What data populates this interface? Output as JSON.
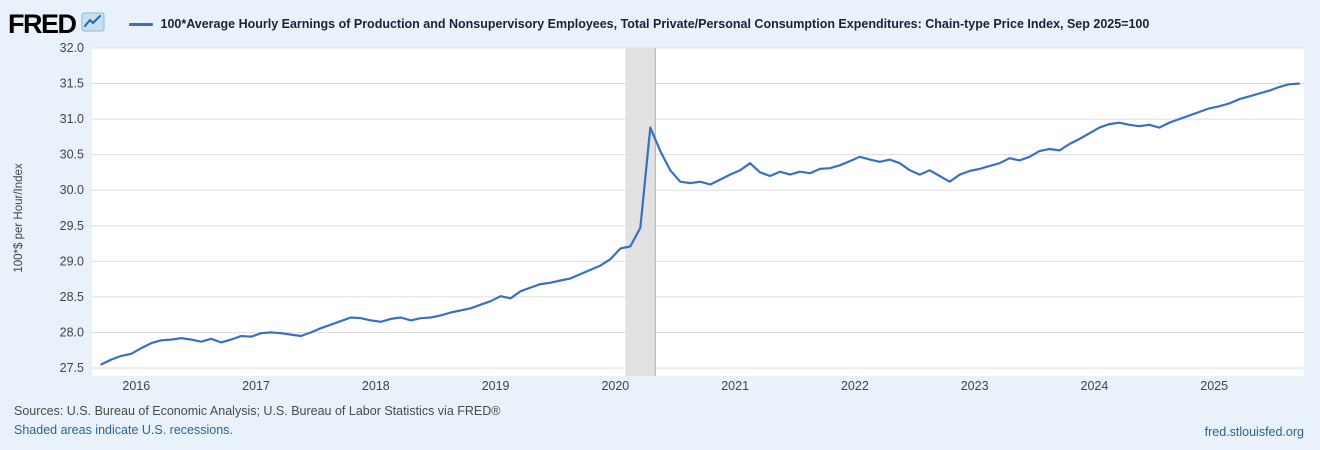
{
  "header": {
    "logo_text": "FRED"
  },
  "footer": {
    "sources": "Sources: U.S. Bureau of Economic Analysis; U.S. Bureau of Labor Statistics via FRED®",
    "recession_note": "Shaded areas indicate U.S. recessions.",
    "site": "fred.stlouisfed.org"
  },
  "chart_data": {
    "type": "line",
    "title": "100*Average Hourly Earnings of Production and Nonsupervisory Employees, Total Private/Personal Consumption Expenditures: Chain-type Price Index, Sep 2025=100",
    "xlabel": "",
    "ylabel": "100*$ per Hour/Index",
    "ylim": [
      27.5,
      32.0
    ],
    "y_tick_step": 0.5,
    "xlim": [
      2015.63,
      2025.75
    ],
    "x_ticks": [
      2016,
      2017,
      2018,
      2019,
      2020,
      2021,
      2022,
      2023,
      2024,
      2025
    ],
    "grid": "horizontal",
    "frequency": "monthly",
    "start": "2015-09",
    "values": [
      27.55,
      27.62,
      27.67,
      27.7,
      27.78,
      27.85,
      27.89,
      27.9,
      27.92,
      27.9,
      27.87,
      27.91,
      27.86,
      27.9,
      27.95,
      27.94,
      27.99,
      28.0,
      27.99,
      27.97,
      27.95,
      28.0,
      28.06,
      28.11,
      28.16,
      28.21,
      28.2,
      28.17,
      28.15,
      28.19,
      28.21,
      28.17,
      28.2,
      28.21,
      28.24,
      28.28,
      28.31,
      28.34,
      28.39,
      28.44,
      28.51,
      28.48,
      28.58,
      28.63,
      28.68,
      28.7,
      28.73,
      28.76,
      28.82,
      28.88,
      28.94,
      29.03,
      29.18,
      29.21,
      29.47,
      30.88,
      30.55,
      30.28,
      30.12,
      30.1,
      30.12,
      30.08,
      30.15,
      30.22,
      30.28,
      30.38,
      30.25,
      30.2,
      30.26,
      30.22,
      30.26,
      30.24,
      30.3,
      30.31,
      30.35,
      30.41,
      30.47,
      30.43,
      30.4,
      30.43,
      30.38,
      30.28,
      30.22,
      30.28,
      30.2,
      30.12,
      30.22,
      30.27,
      30.3,
      30.34,
      30.38,
      30.45,
      30.42,
      30.47,
      30.55,
      30.58,
      30.56,
      30.65,
      30.72,
      30.8,
      30.88,
      30.93,
      30.95,
      30.92,
      30.9,
      30.92,
      30.88,
      30.95,
      31.0,
      31.05,
      31.1,
      31.15,
      31.18,
      31.22,
      31.28,
      31.32,
      31.36,
      31.4,
      31.45,
      31.49,
      31.5
    ],
    "recessions": [
      {
        "start": "2020-02",
        "end": "2020-04"
      }
    ],
    "legend_position": "top",
    "colors": {
      "line": "#3a6fc4",
      "recession_band": "#e2e2e2",
      "background": "#e9f2fa",
      "plot_background": "#ffffff",
      "gridline": "#dedede",
      "link": "#2a6496",
      "title_text": "#19223a"
    }
  }
}
